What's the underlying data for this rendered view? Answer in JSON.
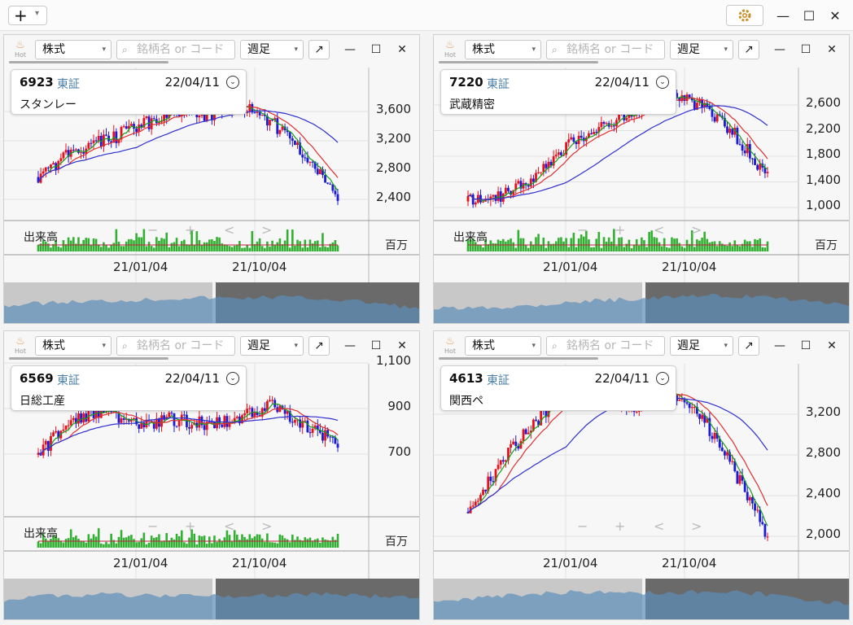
{
  "app": {
    "add_symbol": "+",
    "add_caret": "▾",
    "settings_icon": "gear-icon",
    "minimize": "—",
    "maximize": "☐",
    "close": "✕"
  },
  "panel_common": {
    "hot_label": "Hot",
    "market": "株式",
    "search_placeholder": "銘柄名 or コード",
    "period": "週足",
    "popout": "↗",
    "volume_title": "出来高",
    "volume_unit": "百万",
    "nav_minus": "−",
    "nav_plus": "+",
    "nav_prev": "<",
    "nav_next": ">",
    "colors": {
      "up": "#e8101a",
      "down": "#1a1ad8",
      "ma_short": "#1a9e1a",
      "ma_mid": "#e03030",
      "ma_long": "#3030d0",
      "volume": "#33b033"
    }
  },
  "panels": [
    {
      "code": "6923",
      "exchange": "東証",
      "date": "22/04/11",
      "name": "スタンレー",
      "prices": [
        "3,600",
        "3,200",
        "2,800",
        "2,400"
      ],
      "dates": [
        "21/01/04",
        "21/10/04"
      ],
      "has_volume": true
    },
    {
      "code": "7220",
      "exchange": "東証",
      "date": "22/04/11",
      "name": "武蔵精密",
      "prices": [
        "2,600",
        "2,200",
        "1,800",
        "1,400",
        "1,000"
      ],
      "dates": [
        "21/01/04",
        "21/10/04"
      ],
      "has_volume": true
    },
    {
      "code": "6569",
      "exchange": "東証",
      "date": "22/04/11",
      "name": "日総工産",
      "prices": [
        "1,100",
        "900",
        "700"
      ],
      "dates": [
        "21/01/04",
        "21/10/04"
      ],
      "has_volume": true
    },
    {
      "code": "4613",
      "exchange": "東証",
      "date": "22/04/11",
      "name": "関西ペ",
      "prices": [
        "3,200",
        "2,800",
        "2,400",
        "2,000"
      ],
      "dates": [
        "21/01/04",
        "21/10/04"
      ],
      "has_volume": false
    }
  ]
}
